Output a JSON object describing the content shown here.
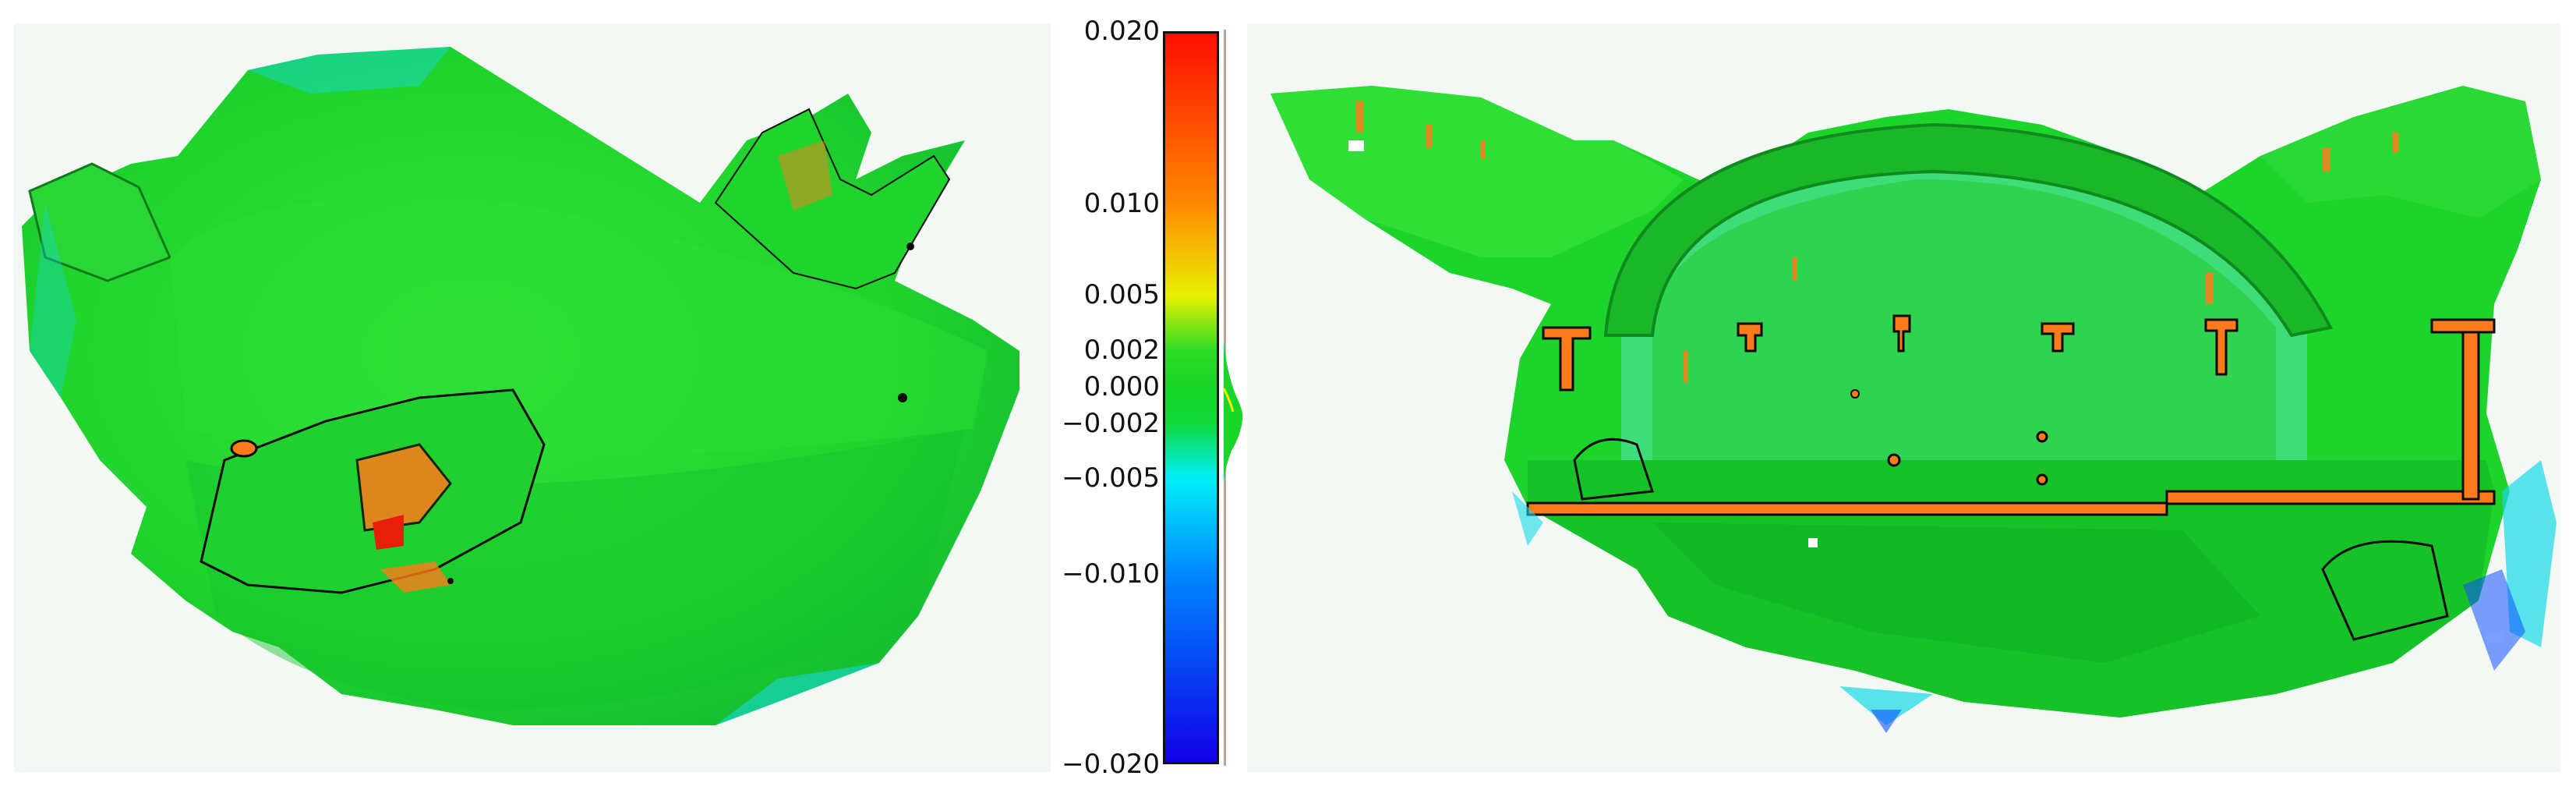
{
  "colorbar": {
    "range": [
      -0.02,
      0.02
    ],
    "gradient_stops": [
      {
        "value": 0.02,
        "color": "#ff0d00"
      },
      {
        "value": 0.01,
        "color": "#ff8a00"
      },
      {
        "value": 0.005,
        "color": "#e8f000"
      },
      {
        "value": 0.002,
        "color": "#2fdc24"
      },
      {
        "value": 0.0,
        "color": "#18d628"
      },
      {
        "value": -0.002,
        "color": "#10da3a"
      },
      {
        "value": -0.005,
        "color": "#00f0f8"
      },
      {
        "value": -0.01,
        "color": "#0088ff"
      },
      {
        "value": -0.02,
        "color": "#1000e8"
      }
    ],
    "ticks": [
      {
        "value": 0.02,
        "label": "0.020"
      },
      {
        "value": 0.01,
        "label": "0.010"
      },
      {
        "value": 0.005,
        "label": "0.005"
      },
      {
        "value": 0.002,
        "label": "0.002"
      },
      {
        "value": 0.0,
        "label": "0.000"
      },
      {
        "value": -0.002,
        "label": "−0.002"
      },
      {
        "value": -0.005,
        "label": "−0.005"
      },
      {
        "value": -0.01,
        "label": "−0.010"
      },
      {
        "value": -0.02,
        "label": "−0.020"
      }
    ]
  },
  "colors": {
    "surface_base": "#18d628",
    "surface_shade": "#12b820",
    "surface_light": "#3ee84a",
    "positive_deviation": "#ff7a1a",
    "high_deviation": "#e81e0c",
    "negative_deviation": "#16d8e6",
    "strong_negative": "#1050ff",
    "contour": "#0a0a0a",
    "background": "#f4f8f4"
  }
}
